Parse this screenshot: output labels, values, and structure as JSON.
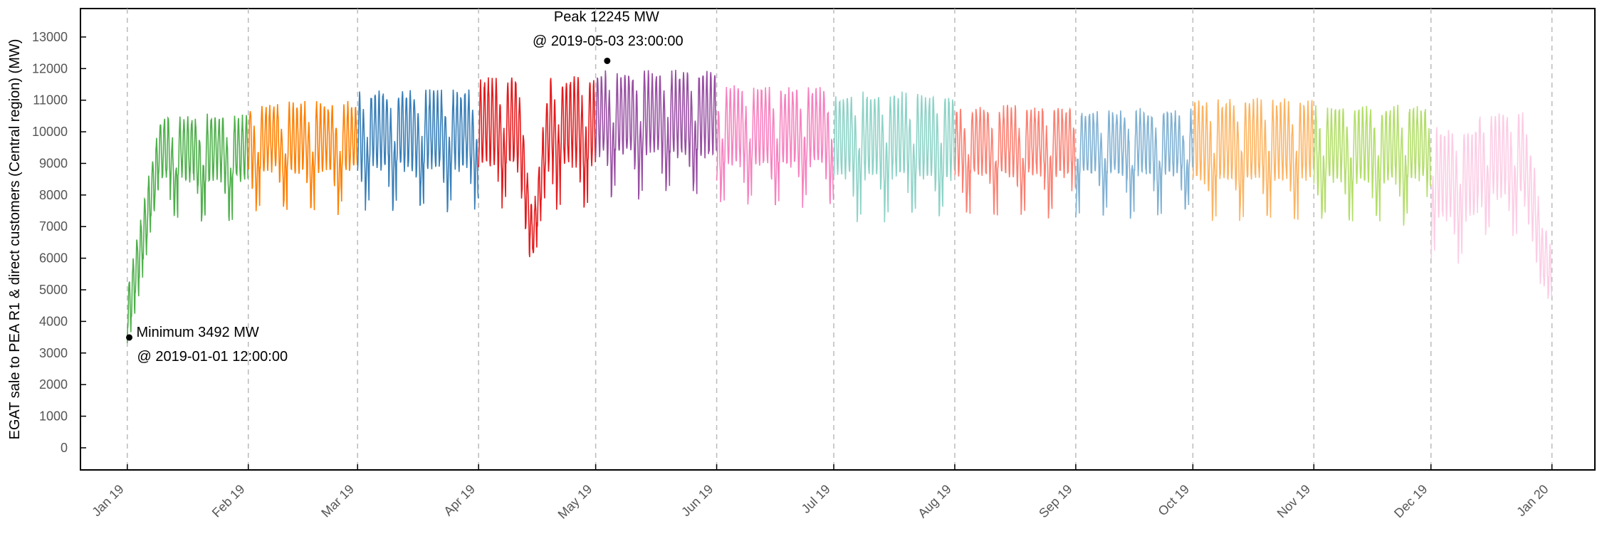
{
  "chart_data": {
    "type": "line",
    "ylabel": "EGAT sale to PEA R1 & direct customers (Central region) (MW)",
    "xlabel": "",
    "ylim": [
      -700,
      13900
    ],
    "xlim": [
      "2018-12-20",
      "2020-01-12"
    ],
    "yticks": [
      0,
      1000,
      2000,
      3000,
      4000,
      5000,
      6000,
      7000,
      8000,
      9000,
      10000,
      11000,
      12000,
      13000
    ],
    "xticks": [
      {
        "date": "2019-01-01",
        "label": "Jan 19"
      },
      {
        "date": "2019-02-01",
        "label": "Feb 19"
      },
      {
        "date": "2019-03-01",
        "label": "Mar 19"
      },
      {
        "date": "2019-04-01",
        "label": "Apr 19"
      },
      {
        "date": "2019-05-01",
        "label": "May 19"
      },
      {
        "date": "2019-06-01",
        "label": "Jun 19"
      },
      {
        "date": "2019-07-01",
        "label": "Jul 19"
      },
      {
        "date": "2019-08-01",
        "label": "Aug 19"
      },
      {
        "date": "2019-09-01",
        "label": "Sep 19"
      },
      {
        "date": "2019-10-01",
        "label": "Oct 19"
      },
      {
        "date": "2019-11-01",
        "label": "Nov 19"
      },
      {
        "date": "2019-12-01",
        "label": "Dec 19"
      },
      {
        "date": "2020-01-01",
        "label": "Jan 20"
      }
    ],
    "grid": "vertical dashed at month ticks",
    "series": [
      {
        "month": "2019-01",
        "color": "#4daf4a",
        "low": 8500,
        "high": 10400,
        "min": 3492,
        "note": "ramps up from minimum at start of month"
      },
      {
        "month": "2019-02",
        "color": "#ff7f00",
        "low": 8800,
        "high": 10800
      },
      {
        "month": "2019-03",
        "color": "#377eb8",
        "low": 8900,
        "high": 11200
      },
      {
        "month": "2019-04",
        "color": "#e41a1c",
        "low": 9000,
        "high": 11600,
        "dip": 5800,
        "note": "Songkran holiday dip mid-April"
      },
      {
        "month": "2019-05",
        "color": "#984ea3",
        "low": 9300,
        "high": 11800,
        "max": 12245
      },
      {
        "month": "2019-06",
        "color": "#f781bf",
        "low": 9000,
        "high": 11300
      },
      {
        "month": "2019-07",
        "color": "#8dd3c7",
        "low": 8600,
        "high": 11100
      },
      {
        "month": "2019-08",
        "color": "#fb8072",
        "low": 8700,
        "high": 10700
      },
      {
        "month": "2019-09",
        "color": "#80b1d3",
        "low": 8700,
        "high": 10600
      },
      {
        "month": "2019-10",
        "color": "#fdb462",
        "low": 8500,
        "high": 10900
      },
      {
        "month": "2019-11",
        "color": "#b3de69",
        "low": 8500,
        "high": 10700
      },
      {
        "month": "2019-12",
        "color": "#fccde5",
        "low": 8000,
        "high": 10500,
        "end": 4200,
        "note": "declines toward year end"
      }
    ],
    "annotations": [
      {
        "label": "Peak 12245 MW",
        "sublabel": "@ 2019-05-03 23:00:00",
        "x": "2019-05-03T23:00:00",
        "y": 12245
      },
      {
        "label": "Minimum 3492 MW",
        "sublabel": "@ 2019-01-01 12:00:00",
        "x": "2019-01-01T12:00:00",
        "y": 3492
      }
    ]
  }
}
